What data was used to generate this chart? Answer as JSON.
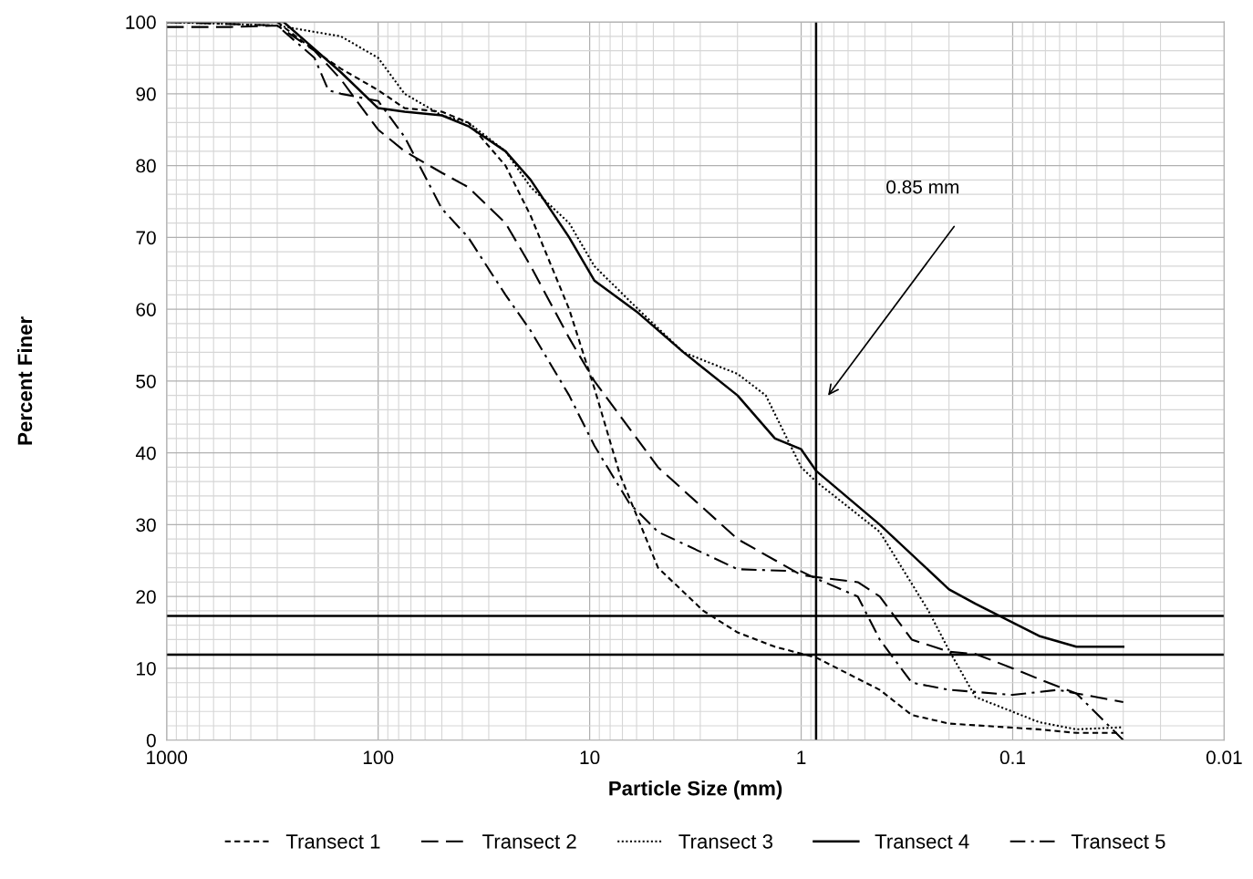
{
  "chart_data": {
    "type": "line",
    "xlabel": "Particle Size (mm)",
    "ylabel": "Percent Finer",
    "log": "x",
    "xlim": [
      1000,
      0.01
    ],
    "xticks": [
      1000,
      100,
      10,
      1,
      0.1,
      0.01
    ],
    "ylim": [
      0,
      100
    ],
    "yticks": [
      0,
      10,
      20,
      30,
      40,
      50,
      60,
      70,
      80,
      90,
      100
    ],
    "grid": true,
    "legend": "bottom",
    "marker": "none",
    "series": [
      {
        "name": "Transect 1",
        "color": "#000000",
        "line_style": "dashed",
        "x": [
          300,
          200,
          150,
          100,
          75,
          50,
          37.5,
          25,
          19,
          12.5,
          9.5,
          7.2,
          4.75,
          2.9,
          2,
          1.33,
          0.85,
          0.425,
          0.3,
          0.2,
          0.075,
          0.05,
          0.03
        ],
        "values": [
          100,
          96,
          93.5,
          90.5,
          88,
          87.5,
          86,
          80,
          73,
          60,
          49,
          37,
          24,
          18,
          15,
          13,
          11.5,
          7,
          3.5,
          2.3,
          1.5,
          1,
          1
        ]
      },
      {
        "name": "Transect 2",
        "color": "#000000",
        "line_style": "longdash",
        "x": [
          1000,
          500,
          300,
          200,
          150,
          100,
          75,
          50,
          37.5,
          25,
          19,
          12.5,
          9.5,
          4.75,
          2,
          1,
          0.85,
          0.54,
          0.425,
          0.3,
          0.2,
          0.15,
          0.1,
          0.075,
          0.05,
          0.03
        ],
        "values": [
          99.3,
          99.3,
          99.5,
          96,
          92,
          85,
          82,
          79,
          77,
          72,
          66,
          56,
          50,
          38,
          28,
          23,
          22.7,
          22,
          20,
          14,
          12.3,
          12,
          10,
          8.5,
          6.5,
          5.3
        ]
      },
      {
        "name": "Transect 3",
        "color": "#000000",
        "line_style": "dotted",
        "x": [
          1000,
          300,
          150,
          100,
          75,
          50,
          37.5,
          25,
          19,
          12.5,
          9.5,
          5.9,
          3.6,
          2,
          1.47,
          1,
          0.85,
          0.425,
          0.25,
          0.2,
          0.15,
          0.075,
          0.05,
          0.03
        ],
        "values": [
          100,
          99.5,
          98,
          95,
          90,
          87,
          86,
          82,
          77,
          72,
          66,
          60,
          54,
          51,
          48,
          38,
          36,
          29,
          18,
          12.5,
          6,
          2.5,
          1.5,
          1.8
        ]
      },
      {
        "name": "Transect 4",
        "color": "#000000",
        "line_style": "solid",
        "x": [
          1000,
          280,
          150,
          100,
          75,
          50,
          37.5,
          25,
          19,
          12.5,
          9.5,
          5.9,
          3.6,
          2,
          1.33,
          1,
          0.85,
          0.425,
          0.2,
          0.15,
          0.075,
          0.05,
          0.03
        ],
        "values": [
          100,
          100,
          93,
          88,
          87.5,
          87,
          85.5,
          82,
          78,
          70,
          64,
          59.5,
          54,
          48,
          42,
          40.5,
          37.5,
          30,
          21,
          19,
          14.5,
          13,
          13
        ]
      },
      {
        "name": "Transect 5",
        "color": "#000000",
        "line_style": "dashdot",
        "x": [
          1000,
          300,
          200,
          172,
          150,
          100,
          75,
          50,
          37.5,
          25,
          19,
          12.5,
          9.5,
          6.5,
          4.75,
          2,
          1,
          0.85,
          0.54,
          0.425,
          0.3,
          0.2,
          0.1,
          0.061,
          0.05,
          0.03
        ],
        "values": [
          100,
          99.5,
          95,
          90.5,
          90,
          89,
          84,
          74,
          70,
          62,
          57,
          48,
          41,
          33,
          29,
          23.8,
          23.5,
          22.5,
          20,
          14,
          8,
          7,
          6.3,
          7,
          6.5,
          0
        ]
      }
    ],
    "ref_lines": [
      {
        "axis": "y",
        "value": 17.3,
        "color": "#000000"
      },
      {
        "axis": "y",
        "value": 11.9,
        "color": "#000000"
      },
      {
        "axis": "x",
        "value": 0.85,
        "color": "#000000"
      }
    ],
    "annotations": [
      "0.85 mm"
    ]
  }
}
